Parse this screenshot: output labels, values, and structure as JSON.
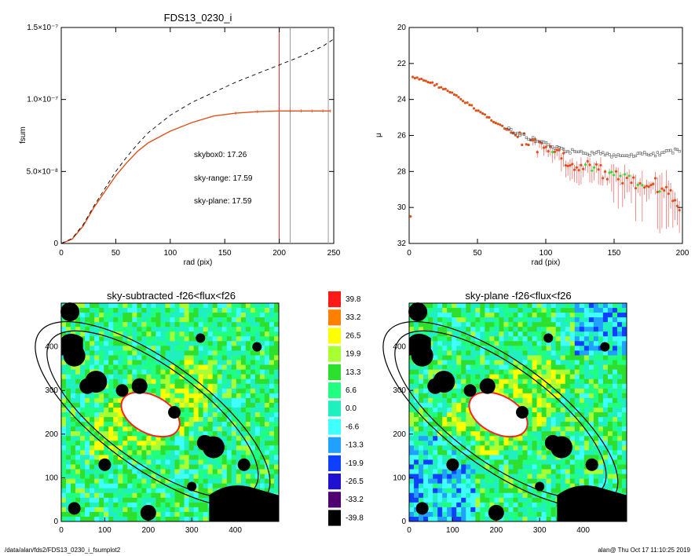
{
  "chart_data": [
    {
      "type": "line",
      "title": "FDS13_0230_i",
      "xlabel": "rad (pix)",
      "ylabel": "fsum",
      "xlim": [
        0,
        250
      ],
      "ylim": [
        0,
        1.5e-07
      ],
      "xticks": [
        "0",
        "50",
        "100",
        "150",
        "200",
        "250"
      ],
      "yticks": [
        "0",
        "5.0×10⁻⁸",
        "1.0×10⁻⁷",
        "1.5×10⁻⁷"
      ],
      "series": [
        {
          "x": [
            0,
            10,
            20,
            30,
            40,
            50,
            60,
            70,
            80,
            100,
            120,
            140,
            160,
            180,
            200,
            210,
            220,
            230,
            240,
            247
          ],
          "values": [
            0,
            3e-09,
            1.2e-08,
            2.5e-08,
            3.6e-08,
            4.7e-08,
            5.6e-08,
            6.4e-08,
            7e-08,
            7.8e-08,
            8.4e-08,
            8.85e-08,
            9.05e-08,
            9.15e-08,
            9.2e-08,
            9.2e-08,
            9.2e-08,
            9.2e-08,
            9.2e-08,
            9.2e-08
          ],
          "color": "#e0501a",
          "style": "solid"
        },
        {
          "x": [
            0,
            10,
            20,
            30,
            40,
            50,
            60,
            70,
            80,
            100,
            120,
            140,
            160,
            180,
            200,
            220,
            240,
            250
          ],
          "values": [
            0,
            3.5e-09,
            1.3e-08,
            2.6e-08,
            3.8e-08,
            5e-08,
            6e-08,
            6.9e-08,
            7.7e-08,
            8.9e-08,
            9.8e-08,
            1.05e-07,
            1.12e-07,
            1.18e-07,
            1.24e-07,
            1.3e-07,
            1.37e-07,
            1.42e-07
          ],
          "color": "#000000",
          "style": "dashed"
        }
      ],
      "vlines": [
        {
          "x": 200,
          "color": "#e02020"
        },
        {
          "x": 210,
          "color": "#999999"
        },
        {
          "x": 245,
          "color": "#999999"
        }
      ],
      "annotations": [
        {
          "text": "skybox0: 17.26",
          "color": "#000000"
        },
        {
          "text": "sky-range: 17.59",
          "color": "#e02020"
        },
        {
          "text": "sky-plane: 17.59",
          "color": "#2ee02e"
        }
      ]
    },
    {
      "type": "scatter",
      "xlabel": "rad (pix)",
      "ylabel": "μ",
      "xlim": [
        0,
        200
      ],
      "ylim": [
        32,
        20
      ],
      "xticks": [
        "0",
        "50",
        "100",
        "150",
        "200"
      ],
      "yticks": [
        "20",
        "22",
        "24",
        "26",
        "28",
        "30",
        "32"
      ],
      "series": [
        {
          "name_hidden": "",
          "x": [
            2,
            10,
            20,
            30,
            40,
            50,
            60,
            70,
            80,
            90,
            100,
            110,
            120,
            130,
            140,
            150,
            160,
            170,
            180,
            190,
            198
          ],
          "values": [
            22.8,
            22.9,
            23.2,
            23.6,
            24.0,
            24.5,
            25.0,
            25.5,
            25.9,
            26.2,
            26.5,
            26.7,
            26.9,
            27.0,
            27.0,
            27.1,
            27.1,
            27.0,
            27.1,
            26.9,
            26.8
          ],
          "color": "#555555",
          "marker": "open-square"
        },
        {
          "x": [
            2,
            10,
            20,
            30,
            40,
            50,
            60,
            70,
            80,
            90,
            100,
            110,
            120,
            130,
            140,
            150,
            160,
            170,
            180,
            190,
            195,
            198
          ],
          "values": [
            22.8,
            22.9,
            23.2,
            23.6,
            24.1,
            24.6,
            25.1,
            25.6,
            26.1,
            26.5,
            26.9,
            27.2,
            27.5,
            27.8,
            28.0,
            28.3,
            28.5,
            28.9,
            28.7,
            29.1,
            30.0,
            30.5
          ],
          "color": "#e0501a",
          "marker": "filled-circle"
        }
      ]
    },
    {
      "type": "heatmap",
      "title": "sky-subtracted -f26<flux<f26",
      "xlim": [
        0,
        500
      ],
      "ylim": [
        0,
        500
      ],
      "xticks": [
        "0",
        "100",
        "200",
        "300",
        "400"
      ],
      "yticks": [
        "0",
        "100",
        "200",
        "300",
        "400"
      ]
    },
    {
      "type": "heatmap",
      "title": "sky-plane -f26<flux<f26",
      "xlim": [
        0,
        500
      ],
      "ylim": [
        0,
        500
      ],
      "xticks": [
        "0",
        "100",
        "200",
        "300",
        "400"
      ],
      "yticks": [
        "0",
        "100",
        "200",
        "300",
        "400"
      ]
    },
    {
      "type": "colorbar",
      "labels": [
        "39.8",
        "33.2",
        "26.5",
        "19.9",
        "13.3",
        "6.6",
        "0.0",
        "-6.6",
        "-13.3",
        "-19.9",
        "-26.5",
        "-33.2",
        "-39.8"
      ],
      "colors": [
        "#ff1a1a",
        "#ff8000",
        "#ffff00",
        "#a8ff33",
        "#2ee02e",
        "#20ff80",
        "#20f0c0",
        "#40ffff",
        "#20a0ff",
        "#1040ff",
        "#2010d0",
        "#500070",
        "#000000"
      ]
    }
  ],
  "footer": {
    "left": "/data/alan/fds2/FDS13_0230_i_fsumplot2",
    "right": "alan@  Thu Oct 17 11:10:25 2019"
  }
}
